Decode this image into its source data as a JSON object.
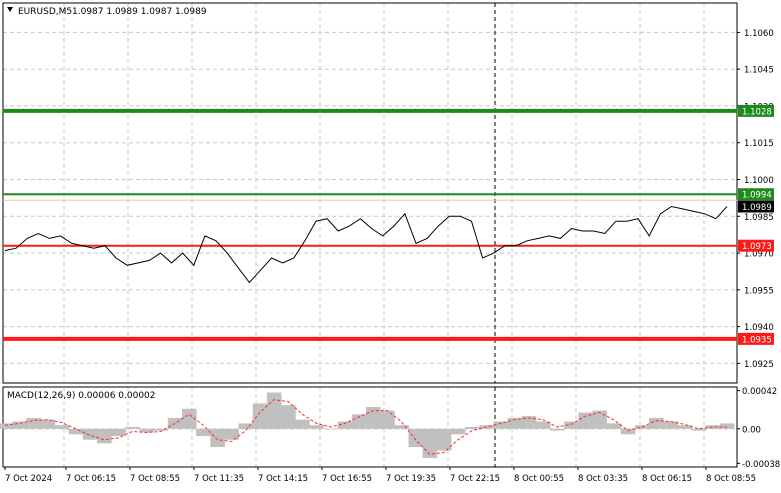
{
  "main_panel": {
    "symbol_label": "EURUSD,M5",
    "ohlc": "1.0987 1.0989 1.0987 1.0989",
    "menu_icon": "triangle-down-icon"
  },
  "macd_panel": {
    "label": "MACD(12,26,9) 0.00006 0.00002"
  },
  "chart_data": [
    {
      "type": "line",
      "panel": "price",
      "ylim": [
        1.0917,
        1.1072
      ],
      "y_ticks": [
        "1.1060",
        "1.1045",
        "1.1030",
        "1.1015",
        "1.1000",
        "1.0985",
        "1.0970",
        "1.0955",
        "1.0940",
        "1.0925"
      ],
      "y_tick_values": [
        1.106,
        1.1045,
        1.103,
        1.1015,
        1.1,
        1.0985,
        1.097,
        1.0955,
        1.094,
        1.0925
      ],
      "x_ticks": [
        "7 Oct 2024",
        "7 Oct 06:15",
        "7 Oct 08:55",
        "7 Oct 11:35",
        "7 Oct 14:15",
        "7 Oct 16:55",
        "7 Oct 19:35",
        "7 Oct 22:15",
        "8 Oct 00:55",
        "8 Oct 03:35",
        "8 Oct 06:15",
        "8 Oct 08:55"
      ],
      "series": [
        {
          "values": [
            1.0971,
            1.0972,
            1.0976,
            1.0978,
            1.0976,
            1.0977,
            1.0974,
            1.0973,
            1.0972,
            1.0973,
            1.0968,
            1.0965,
            1.0966,
            1.0967,
            1.097,
            1.0966,
            1.097,
            1.0965,
            1.0977,
            1.0975,
            1.097,
            1.0964,
            1.0958,
            1.0963,
            1.0968,
            1.0966,
            1.0968,
            1.0975,
            1.0983,
            1.0984,
            1.0979,
            1.0981,
            1.0984,
            1.098,
            1.0977,
            1.0981,
            1.0986,
            1.0974,
            1.0976,
            1.0981,
            1.0985,
            1.0985,
            1.0983,
            1.0968,
            1.097,
            1.0973,
            1.0973,
            1.0975,
            1.0976,
            1.0977,
            1.0976,
            1.098,
            1.0979,
            1.0979,
            1.0978,
            1.0983,
            1.0983,
            1.0984,
            1.0977,
            1.0986,
            1.0989,
            1.0988,
            1.0987,
            1.0986,
            1.0984,
            1.0989
          ]
        }
      ],
      "horizontal_levels": [
        {
          "value": 1.1028,
          "label": "1.1028",
          "color": "#1e8a1e"
        },
        {
          "value": 1.0994,
          "label": "1.0994",
          "color": "#1e8a1e"
        },
        {
          "value": 1.0989,
          "label": "1.0989",
          "color": "#000000"
        },
        {
          "value": 1.0973,
          "label": "1.0973",
          "color": "#ff1a1a"
        },
        {
          "value": 1.0935,
          "label": "1.0935",
          "color": "#ff1a1a"
        }
      ],
      "vertical_marker": "7 Oct 22:15",
      "grid": true
    },
    {
      "type": "bar",
      "panel": "macd",
      "ylim": [
        -0.00042,
        0.00046
      ],
      "y_ticks": [
        "0.00042",
        "0.00",
        "-0.00038"
      ],
      "y_tick_values": [
        0.00042,
        0.0,
        -0.00038
      ],
      "histogram": [
        6e-05,
        8e-05,
        0.00012,
        0.0001,
        4e-05,
        -6e-05,
        -0.00012,
        -0.00016,
        -8e-05,
        2e-05,
        -4e-05,
        -2e-05,
        0.00012,
        0.00022,
        -8e-05,
        -0.0002,
        -0.00012,
        6e-05,
        0.00028,
        0.0004,
        0.00026,
        0.0001,
        4e-05,
        0.0,
        8e-05,
        0.00016,
        0.00024,
        0.0002,
        4e-05,
        -0.0002,
        -0.00032,
        -0.00024,
        -6e-05,
        2e-05,
        4e-05,
        8e-05,
        0.00012,
        0.00014,
        8e-05,
        -2e-05,
        8e-05,
        0.00018,
        0.0002,
        6e-05,
        -6e-05,
        4e-05,
        0.00012,
        8e-05,
        4e-05,
        -2e-05,
        4e-05,
        6e-05
      ],
      "signal": [
        4e-05,
        6e-05,
        9e-05,
        0.0001,
        7e-05,
        0.0,
        -7e-05,
        -0.00012,
        -0.0001,
        -3e-05,
        -4e-05,
        -3e-05,
        6e-05,
        0.00016,
        4e-05,
        -0.00012,
        -0.00014,
        -2e-05,
        0.00018,
        0.00032,
        0.0003,
        0.00016,
        6e-05,
        2e-05,
        6e-05,
        0.00013,
        0.0002,
        0.0002,
        8e-05,
        -0.00012,
        -0.00028,
        -0.00026,
        -0.00012,
        -2e-05,
        2e-05,
        6e-05,
        0.0001,
        0.00012,
        0.0001,
        2e-05,
        5e-05,
        0.00014,
        0.00018,
        0.0001,
        -2e-05,
        2e-05,
        9e-05,
        8e-05,
        5e-05,
        0.0,
        2e-05,
        2e-05
      ],
      "grid": true
    }
  ]
}
